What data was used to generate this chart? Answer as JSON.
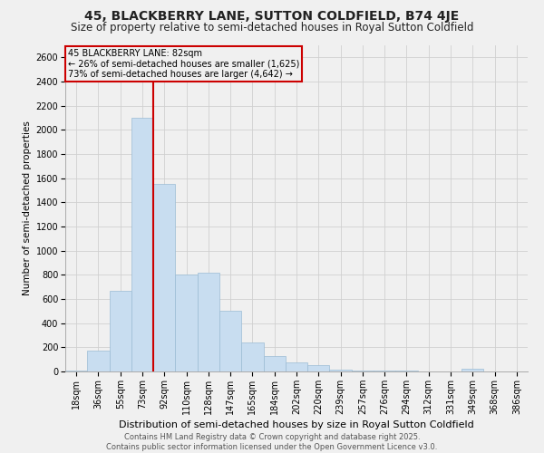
{
  "title": "45, BLACKBERRY LANE, SUTTON COLDFIELD, B74 4JE",
  "subtitle": "Size of property relative to semi-detached houses in Royal Sutton Coldfield",
  "xlabel": "Distribution of semi-detached houses by size in Royal Sutton Coldfield",
  "ylabel": "Number of semi-detached properties",
  "categories": [
    "18sqm",
    "36sqm",
    "55sqm",
    "73sqm",
    "92sqm",
    "110sqm",
    "128sqm",
    "147sqm",
    "165sqm",
    "184sqm",
    "202sqm",
    "220sqm",
    "239sqm",
    "257sqm",
    "276sqm",
    "294sqm",
    "312sqm",
    "331sqm",
    "349sqm",
    "368sqm",
    "386sqm"
  ],
  "values": [
    5,
    170,
    670,
    2100,
    1550,
    800,
    820,
    500,
    240,
    130,
    75,
    50,
    15,
    8,
    4,
    4,
    2,
    2,
    20,
    2,
    2
  ],
  "bar_color": "#c8ddf0",
  "bar_edge_color": "#9bbcd4",
  "annotation_line_color": "#cc0000",
  "annotation_box_text": "45 BLACKBERRY LANE: 82sqm\n← 26% of semi-detached houses are smaller (1,625)\n73% of semi-detached houses are larger (4,642) →",
  "ylim": [
    0,
    2700
  ],
  "yticks": [
    0,
    200,
    400,
    600,
    800,
    1000,
    1200,
    1400,
    1600,
    1800,
    2000,
    2200,
    2400,
    2600
  ],
  "background_color": "#f0f0f0",
  "grid_color": "#d0d0d0",
  "footer": "Contains HM Land Registry data © Crown copyright and database right 2025.\nContains public sector information licensed under the Open Government Licence v3.0.",
  "title_fontsize": 10,
  "subtitle_fontsize": 8.5,
  "xlabel_fontsize": 8,
  "ylabel_fontsize": 7.5,
  "tick_fontsize": 7,
  "annotation_fontsize": 7,
  "footer_fontsize": 6
}
